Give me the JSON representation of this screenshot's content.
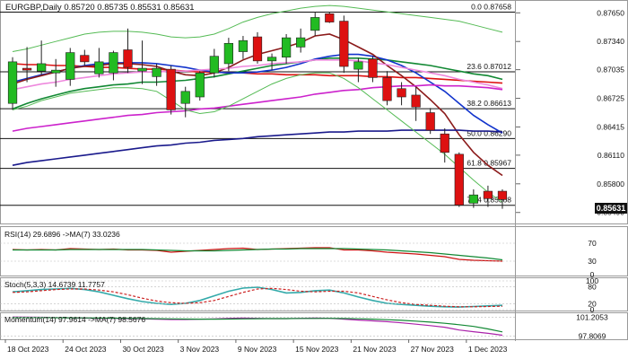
{
  "header": {
    "symbol": "EURGBP",
    "timeframe": "Daily",
    "ohlc": "0.85720 0.85735 0.85531 0.85631"
  },
  "current_price_label": "0.85631",
  "colors": {
    "bull": "#22bb22",
    "bear": "#dd1111",
    "ma_red": "#dd1111",
    "ma_blue": "#1133cc",
    "ma_green": "#118833",
    "ma_maroon": "#8b1a1a",
    "ma_violet": "#cc22cc",
    "ma_pink": "#ee88dd",
    "ma_navy": "#1a1a8c",
    "bollinger": "#55bb55",
    "fib_line": "#111111",
    "rsi": "#cc1111",
    "rsi_ma": "#118833",
    "stoch_k": "#33aaaa",
    "stoch_d": "#cc2222",
    "mom": "#aa22aa",
    "mom_ma": "#118833",
    "highlight": "#111111"
  },
  "chart_data": [
    {
      "type": "candlestick",
      "panel": "price",
      "ylim": [
        0.854,
        0.8775
      ],
      "x_tick_labels": [
        "18 Oct 2023",
        "24 Oct 2023",
        "30 Oct 2023",
        "3 Nov 2023",
        "9 Nov 2023",
        "15 Nov 2023",
        "21 Nov 2023",
        "27 Nov 2023",
        "1 Dec 2023"
      ],
      "x_tick_index": [
        0,
        4,
        8,
        12,
        16,
        20,
        24,
        28,
        32
      ],
      "y_ticks": [
        {
          "value": 0.8765,
          "label": "0.87650"
        },
        {
          "value": 0.8734,
          "label": "0.87340"
        },
        {
          "value": 0.87035,
          "label": "0.87035"
        },
        {
          "value": 0.86725,
          "label": "0.86725"
        },
        {
          "value": 0.86415,
          "label": "0.86415"
        },
        {
          "value": 0.8611,
          "label": "0.86110"
        },
        {
          "value": 0.858,
          "label": "0.85800"
        },
        {
          "value": 0.8549,
          "label": "0.85490"
        }
      ],
      "fib_levels": [
        {
          "label": "0.0 0.87658",
          "value": 0.87658
        },
        {
          "label": "23.6 0.87012",
          "value": 0.87012
        },
        {
          "label": "38.2 0.86613",
          "value": 0.86613
        },
        {
          "label": "50.0 0.86290",
          "value": 0.8629
        },
        {
          "label": "61.8 0.85967",
          "value": 0.85967
        },
        {
          "label": "76.4 0.85568",
          "value": 0.85568
        }
      ],
      "candles": [
        {
          "o": 0.8667,
          "h": 0.8717,
          "l": 0.866,
          "c": 0.8712
        },
        {
          "o": 0.8705,
          "h": 0.8728,
          "l": 0.869,
          "c": 0.8703
        },
        {
          "o": 0.8702,
          "h": 0.8735,
          "l": 0.8698,
          "c": 0.871
        },
        {
          "o": 0.87,
          "h": 0.8715,
          "l": 0.8685,
          "c": 0.8703
        },
        {
          "o": 0.8693,
          "h": 0.8727,
          "l": 0.8686,
          "c": 0.8722
        },
        {
          "o": 0.8719,
          "h": 0.8725,
          "l": 0.8708,
          "c": 0.8712
        },
        {
          "o": 0.8699,
          "h": 0.8727,
          "l": 0.8695,
          "c": 0.8712
        },
        {
          "o": 0.87,
          "h": 0.8724,
          "l": 0.8692,
          "c": 0.8722
        },
        {
          "o": 0.8725,
          "h": 0.8748,
          "l": 0.87,
          "c": 0.8706
        },
        {
          "o": 0.8702,
          "h": 0.8735,
          "l": 0.8688,
          "c": 0.8705
        },
        {
          "o": 0.8696,
          "h": 0.871,
          "l": 0.8686,
          "c": 0.8705
        },
        {
          "o": 0.8704,
          "h": 0.8708,
          "l": 0.8655,
          "c": 0.866
        },
        {
          "o": 0.8667,
          "h": 0.8685,
          "l": 0.8652,
          "c": 0.868
        },
        {
          "o": 0.8674,
          "h": 0.8702,
          "l": 0.867,
          "c": 0.87
        },
        {
          "o": 0.87,
          "h": 0.8726,
          "l": 0.8695,
          "c": 0.8718
        },
        {
          "o": 0.871,
          "h": 0.8738,
          "l": 0.8702,
          "c": 0.8732
        },
        {
          "o": 0.8723,
          "h": 0.874,
          "l": 0.8715,
          "c": 0.8735
        },
        {
          "o": 0.8739,
          "h": 0.8744,
          "l": 0.871,
          "c": 0.8713
        },
        {
          "o": 0.8713,
          "h": 0.8721,
          "l": 0.8703,
          "c": 0.8717
        },
        {
          "o": 0.8717,
          "h": 0.8742,
          "l": 0.871,
          "c": 0.8738
        },
        {
          "o": 0.8728,
          "h": 0.8748,
          "l": 0.8722,
          "c": 0.8738
        },
        {
          "o": 0.8746,
          "h": 0.8766,
          "l": 0.874,
          "c": 0.876
        },
        {
          "o": 0.8764,
          "h": 0.8766,
          "l": 0.8754,
          "c": 0.8755
        },
        {
          "o": 0.8756,
          "h": 0.8762,
          "l": 0.87,
          "c": 0.8707
        },
        {
          "o": 0.8704,
          "h": 0.8716,
          "l": 0.869,
          "c": 0.8712
        },
        {
          "o": 0.8715,
          "h": 0.8718,
          "l": 0.869,
          "c": 0.8695
        },
        {
          "o": 0.8695,
          "h": 0.8702,
          "l": 0.8665,
          "c": 0.867
        },
        {
          "o": 0.8683,
          "h": 0.869,
          "l": 0.8665,
          "c": 0.8674
        },
        {
          "o": 0.8676,
          "h": 0.8685,
          "l": 0.8648,
          "c": 0.8663
        },
        {
          "o": 0.8657,
          "h": 0.8662,
          "l": 0.8634,
          "c": 0.8638
        },
        {
          "o": 0.8634,
          "h": 0.864,
          "l": 0.8603,
          "c": 0.8614
        },
        {
          "o": 0.8612,
          "h": 0.8614,
          "l": 0.8555,
          "c": 0.8557
        },
        {
          "o": 0.8559,
          "h": 0.8574,
          "l": 0.8554,
          "c": 0.8568
        },
        {
          "o": 0.8572,
          "h": 0.8578,
          "l": 0.8555,
          "c": 0.8564
        },
        {
          "o": 0.8572,
          "h": 0.8574,
          "l": 0.8553,
          "c": 0.8563
        }
      ],
      "series": [
        {
          "key": "ma_red",
          "values": [
            0.871,
            0.8709,
            0.8709,
            0.8708,
            0.8708,
            0.8707,
            0.8706,
            0.8706,
            0.8705,
            0.8704,
            0.8704,
            0.8703,
            0.8702,
            0.8701,
            0.8701,
            0.87,
            0.87,
            0.8699,
            0.8699,
            0.8698,
            0.8698,
            0.8698,
            0.8697,
            0.8697,
            0.8697,
            0.8696,
            0.8696,
            0.8695,
            0.8695,
            0.8694,
            0.8693,
            0.8692,
            0.8691,
            0.869,
            0.8689
          ]
        },
        {
          "key": "ma_green",
          "values": [
            0.8661,
            0.8667,
            0.8672,
            0.8676,
            0.868,
            0.8683,
            0.8685,
            0.8687,
            0.8688,
            0.869,
            0.869,
            0.8691,
            0.8692,
            0.8694,
            0.8696,
            0.8699,
            0.8702,
            0.8705,
            0.8708,
            0.871,
            0.8712,
            0.8714,
            0.8716,
            0.8716,
            0.8716,
            0.8715,
            0.8714,
            0.8712,
            0.871,
            0.8708,
            0.8705,
            0.8702,
            0.8699,
            0.8697,
            0.8693
          ]
        },
        {
          "key": "ma_blue",
          "values": [
            0.869,
            0.8694,
            0.8698,
            0.8701,
            0.8705,
            0.8708,
            0.871,
            0.8711,
            0.8711,
            0.8711,
            0.871,
            0.8708,
            0.8706,
            0.8703,
            0.8701,
            0.87,
            0.87,
            0.8701,
            0.8703,
            0.8706,
            0.871,
            0.8715,
            0.8718,
            0.872,
            0.872,
            0.8718,
            0.8714,
            0.8708,
            0.87,
            0.869,
            0.868,
            0.8667,
            0.8654,
            0.8644,
            0.8635
          ]
        },
        {
          "key": "ma_maroon",
          "values": [
            0.8688,
            0.8693,
            0.8697,
            0.8701,
            0.8705,
            0.8707,
            0.8708,
            0.871,
            0.871,
            0.8709,
            0.8707,
            0.8702,
            0.8698,
            0.8697,
            0.87,
            0.8706,
            0.8714,
            0.872,
            0.8724,
            0.8728,
            0.8733,
            0.874,
            0.8742,
            0.8736,
            0.8728,
            0.872,
            0.8708,
            0.8697,
            0.8685,
            0.8671,
            0.8656,
            0.8633,
            0.8614,
            0.86,
            0.8589
          ]
        },
        {
          "key": "ma_pink",
          "values": [
            0.8682,
            0.8685,
            0.8688,
            0.869,
            0.8693,
            0.8695,
            0.8697,
            0.8699,
            0.87,
            0.8701,
            0.8701,
            0.8702,
            0.8702,
            0.8703,
            0.8704,
            0.8705,
            0.8707,
            0.8708,
            0.871,
            0.8711,
            0.8712,
            0.8714,
            0.8714,
            0.8714,
            0.8713,
            0.8711,
            0.8709,
            0.8706,
            0.8703,
            0.87,
            0.8697,
            0.8693,
            0.869,
            0.8687,
            0.8683
          ]
        },
        {
          "key": "ma_violet",
          "values": [
            0.8637,
            0.864,
            0.8642,
            0.8644,
            0.8646,
            0.8648,
            0.865,
            0.8652,
            0.8654,
            0.8655,
            0.8657,
            0.8658,
            0.8659,
            0.8661,
            0.8662,
            0.8664,
            0.8666,
            0.8668,
            0.867,
            0.8672,
            0.8674,
            0.8677,
            0.8679,
            0.8681,
            0.8682,
            0.8684,
            0.8685,
            0.8686,
            0.8686,
            0.8687,
            0.8686,
            0.8686,
            0.8685,
            0.8684,
            0.8682
          ]
        },
        {
          "key": "ma_navy",
          "values": [
            0.86,
            0.8603,
            0.8605,
            0.8607,
            0.8609,
            0.8611,
            0.8613,
            0.8615,
            0.8617,
            0.8619,
            0.8621,
            0.8622,
            0.8624,
            0.8625,
            0.8627,
            0.8628,
            0.8629,
            0.8631,
            0.8632,
            0.8633,
            0.8634,
            0.8635,
            0.8636,
            0.8636,
            0.8637,
            0.8637,
            0.8637,
            0.8638,
            0.8638,
            0.8638,
            0.8638,
            0.8638,
            0.8637,
            0.8637,
            0.8636
          ]
        },
        {
          "key": "bollinger",
          "values": [
            0.8723,
            0.8726,
            0.873,
            0.8734,
            0.8738,
            0.8742,
            0.8744,
            0.8745,
            0.8745,
            0.8744,
            0.8742,
            0.8739,
            0.8738,
            0.8739,
            0.8742,
            0.8748,
            0.8755,
            0.876,
            0.8764,
            0.8767,
            0.877,
            0.8772,
            0.8773,
            0.8772,
            0.877,
            0.8768,
            0.8766,
            0.8764,
            0.8762,
            0.876,
            0.8758,
            0.8756,
            0.8752,
            0.8748,
            0.8744
          ]
        },
        {
          "key": "bollinger",
          "values": [
            0.866,
            0.8664,
            0.867,
            0.8674,
            0.8678,
            0.868,
            0.8682,
            0.8684,
            0.8684,
            0.8683,
            0.868,
            0.867,
            0.866,
            0.8656,
            0.8658,
            0.8664,
            0.8672,
            0.868,
            0.8688,
            0.8694,
            0.8698,
            0.87,
            0.87,
            0.8694,
            0.8684,
            0.8672,
            0.866,
            0.8648,
            0.8636,
            0.8624,
            0.8612,
            0.8598,
            0.8584,
            0.8571,
            0.856
          ]
        }
      ]
    },
    {
      "type": "line",
      "panel": "rsi",
      "title": "RSI(14) 29.6896 ->MA(7) 33.0236",
      "ylim": [
        0,
        100
      ],
      "y_ticks": [
        {
          "value": 70,
          "label": "70"
        },
        {
          "value": 30,
          "label": "30"
        },
        {
          "value": 0,
          "label": "0"
        }
      ],
      "series": [
        {
          "key": "rsi",
          "values": [
            56,
            55,
            56,
            55,
            58,
            57,
            56,
            57,
            55,
            55,
            54,
            50,
            52,
            54,
            56,
            58,
            59,
            56,
            57,
            58,
            59,
            60,
            60,
            55,
            55,
            53,
            50,
            48,
            46,
            43,
            40,
            34,
            32,
            31,
            30
          ]
        },
        {
          "key": "rsi_ma",
          "values": [
            55,
            55,
            55,
            55,
            56,
            56,
            56,
            56,
            56,
            56,
            55,
            54,
            53,
            53,
            53,
            54,
            55,
            56,
            57,
            57,
            58,
            58,
            58,
            58,
            57,
            56,
            55,
            53,
            51,
            49,
            46,
            43,
            40,
            37,
            33
          ]
        }
      ]
    },
    {
      "type": "line",
      "panel": "stoch",
      "title": "Stoch(5,3,3) 14.6739 11.7757",
      "ylim": [
        0,
        100
      ],
      "y_ticks": [
        {
          "value": 100,
          "label": "100"
        },
        {
          "value": 80,
          "label": "80"
        },
        {
          "value": 20,
          "label": "20"
        },
        {
          "value": 0,
          "label": "0"
        }
      ],
      "series": [
        {
          "key": "stoch_k",
          "values": [
            62,
            66,
            70,
            72,
            74,
            70,
            62,
            50,
            38,
            28,
            22,
            18,
            22,
            32,
            48,
            64,
            75,
            78,
            70,
            58,
            60,
            66,
            68,
            58,
            44,
            32,
            22,
            18,
            15,
            12,
            10,
            9,
            11,
            13,
            15
          ]
        },
        {
          "key": "stoch_d",
          "values": [
            60,
            62,
            66,
            70,
            72,
            72,
            68,
            62,
            52,
            40,
            30,
            24,
            22,
            24,
            32,
            46,
            60,
            72,
            74,
            70,
            64,
            62,
            64,
            64,
            58,
            46,
            34,
            24,
            18,
            15,
            12,
            10,
            10,
            11,
            12
          ]
        }
      ]
    },
    {
      "type": "line",
      "panel": "momentum",
      "title": "Momentum(14) 97.9614 ->MA(7) 98.5676",
      "ylim": [
        97.4,
        101.6
      ],
      "y_ticks": [
        {
          "value": 101.2053,
          "label": "101.2053"
        },
        {
          "value": 97.8069,
          "label": "97.8069"
        }
      ],
      "series": [
        {
          "key": "mom",
          "values": [
            101.25,
            101.22,
            101.2,
            101.15,
            101.1,
            101.05,
            101.0,
            101.0,
            100.95,
            100.9,
            100.85,
            100.8,
            100.8,
            100.85,
            100.9,
            101.0,
            101.05,
            101.0,
            100.95,
            100.95,
            101.0,
            101.05,
            101.0,
            100.85,
            100.7,
            100.55,
            100.4,
            100.2,
            99.95,
            99.7,
            99.4,
            98.9,
            98.6,
            98.3,
            97.96
          ]
        },
        {
          "key": "mom_ma",
          "values": [
            101.15,
            101.15,
            101.14,
            101.12,
            101.1,
            101.08,
            101.05,
            101.03,
            101.0,
            100.97,
            100.93,
            100.9,
            100.87,
            100.86,
            100.86,
            100.88,
            100.91,
            100.93,
            100.95,
            100.96,
            100.98,
            100.99,
            101.0,
            100.97,
            100.92,
            100.85,
            100.76,
            100.64,
            100.5,
            100.32,
            100.12,
            99.86,
            99.55,
            99.1,
            98.57
          ]
        }
      ]
    }
  ]
}
